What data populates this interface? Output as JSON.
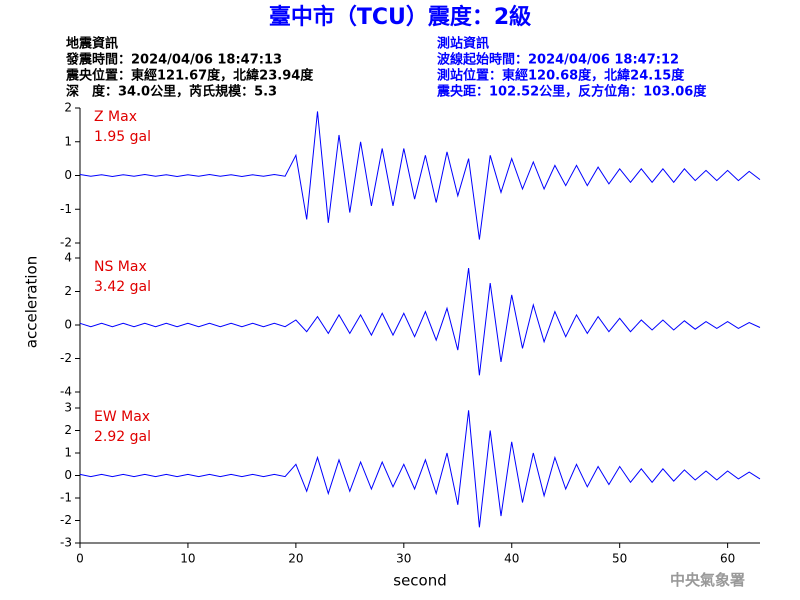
{
  "header": {
    "title": "臺中市（TCU）震度：2級",
    "left": [
      "地震資訊",
      "發震時間：2024/04/06 18:47:13",
      "震央位置：東經121.67度，北緯23.94度",
      "深　度：34.0公里，芮氏規模：5.3"
    ],
    "right": [
      "測站資訊",
      "波線起始時間：2024/04/06 18:47:12",
      "測站位置：東經120.68度，北緯24.15度",
      "震央距：102.52公里，反方位角：103.06度"
    ]
  },
  "x_label": "second",
  "y_label": "acceleration",
  "footer": "中央氣象署",
  "chart_data": [
    {
      "type": "line",
      "annotations": [
        "Z Max",
        "1.95 gal"
      ],
      "color": "#0000ff",
      "xlim": [
        0,
        63
      ],
      "xticks": [
        0,
        10,
        20,
        30,
        40,
        50,
        60
      ],
      "ylim": [
        -2,
        2
      ],
      "yticks": [
        -2,
        -1,
        0,
        1,
        2
      ],
      "x": [
        0,
        1,
        2,
        3,
        4,
        5,
        6,
        7,
        8,
        9,
        10,
        11,
        12,
        13,
        14,
        15,
        16,
        17,
        18,
        19,
        20,
        21,
        22,
        23,
        24,
        25,
        26,
        27,
        28,
        29,
        30,
        31,
        32,
        33,
        34,
        35,
        36,
        37,
        38,
        39,
        40,
        41,
        42,
        43,
        44,
        45,
        46,
        47,
        48,
        49,
        50,
        51,
        52,
        53,
        54,
        55,
        56,
        57,
        58,
        59,
        60,
        61,
        62,
        63
      ],
      "values": [
        0.03,
        -0.02,
        0.02,
        -0.03,
        0.02,
        -0.02,
        0.03,
        -0.02,
        0.02,
        -0.03,
        0.02,
        -0.02,
        0.03,
        -0.02,
        0.02,
        -0.03,
        0.02,
        -0.02,
        0.03,
        -0.02,
        0.6,
        -1.3,
        1.9,
        -1.4,
        1.2,
        -1.1,
        1.0,
        -0.9,
        0.8,
        -0.9,
        0.8,
        -0.7,
        0.6,
        -0.8,
        0.7,
        -0.6,
        0.5,
        -1.9,
        0.6,
        -0.5,
        0.5,
        -0.4,
        0.4,
        -0.4,
        0.3,
        -0.3,
        0.3,
        -0.3,
        0.25,
        -0.25,
        0.2,
        -0.2,
        0.2,
        -0.2,
        0.2,
        -0.2,
        0.2,
        -0.15,
        0.15,
        -0.15,
        0.15,
        -0.15,
        0.12,
        -0.12
      ]
    },
    {
      "type": "line",
      "annotations": [
        "NS Max",
        "3.42 gal"
      ],
      "color": "#0000ff",
      "xlim": [
        0,
        63
      ],
      "xticks": [
        0,
        10,
        20,
        30,
        40,
        50,
        60
      ],
      "ylim": [
        -4,
        4
      ],
      "yticks": [
        -4,
        -2,
        0,
        2,
        4
      ],
      "x": [
        0,
        1,
        2,
        3,
        4,
        5,
        6,
        7,
        8,
        9,
        10,
        11,
        12,
        13,
        14,
        15,
        16,
        17,
        18,
        19,
        20,
        21,
        22,
        23,
        24,
        25,
        26,
        27,
        28,
        29,
        30,
        31,
        32,
        33,
        34,
        35,
        36,
        37,
        38,
        39,
        40,
        41,
        42,
        43,
        44,
        45,
        46,
        47,
        48,
        49,
        50,
        51,
        52,
        53,
        54,
        55,
        56,
        57,
        58,
        59,
        60,
        61,
        62,
        63
      ],
      "values": [
        0.1,
        -0.1,
        0.1,
        -0.1,
        0.1,
        -0.1,
        0.1,
        -0.1,
        0.1,
        -0.1,
        0.1,
        -0.1,
        0.1,
        -0.1,
        0.1,
        -0.1,
        0.1,
        -0.1,
        0.1,
        -0.1,
        0.3,
        -0.4,
        0.5,
        -0.5,
        0.6,
        -0.5,
        0.6,
        -0.6,
        0.7,
        -0.6,
        0.7,
        -0.7,
        0.8,
        -0.9,
        1.0,
        -1.5,
        3.4,
        -3.0,
        2.5,
        -2.2,
        1.8,
        -1.4,
        1.2,
        -1.0,
        0.8,
        -0.7,
        0.6,
        -0.5,
        0.5,
        -0.4,
        0.4,
        -0.4,
        0.3,
        -0.3,
        0.3,
        -0.3,
        0.25,
        -0.25,
        0.2,
        -0.2,
        0.2,
        -0.2,
        0.15,
        -0.15
      ]
    },
    {
      "type": "line",
      "annotations": [
        "EW Max",
        "2.92 gal"
      ],
      "color": "#0000ff",
      "xlim": [
        0,
        63
      ],
      "xticks": [
        0,
        10,
        20,
        30,
        40,
        50,
        60
      ],
      "ylim": [
        -3,
        3
      ],
      "yticks": [
        -3,
        -2,
        -1,
        0,
        1,
        2,
        3
      ],
      "x": [
        0,
        1,
        2,
        3,
        4,
        5,
        6,
        7,
        8,
        9,
        10,
        11,
        12,
        13,
        14,
        15,
        16,
        17,
        18,
        19,
        20,
        21,
        22,
        23,
        24,
        25,
        26,
        27,
        28,
        29,
        30,
        31,
        32,
        33,
        34,
        35,
        36,
        37,
        38,
        39,
        40,
        41,
        42,
        43,
        44,
        45,
        46,
        47,
        48,
        49,
        50,
        51,
        52,
        53,
        54,
        55,
        56,
        57,
        58,
        59,
        60,
        61,
        62,
        63
      ],
      "values": [
        0.05,
        -0.05,
        0.05,
        -0.05,
        0.05,
        -0.05,
        0.05,
        -0.05,
        0.05,
        -0.05,
        0.05,
        -0.05,
        0.05,
        -0.05,
        0.05,
        -0.05,
        0.05,
        -0.05,
        0.05,
        -0.05,
        0.5,
        -0.7,
        0.8,
        -0.8,
        0.7,
        -0.7,
        0.6,
        -0.6,
        0.6,
        -0.5,
        0.5,
        -0.6,
        0.7,
        -0.8,
        1.0,
        -1.3,
        2.9,
        -2.3,
        2.0,
        -1.8,
        1.5,
        -1.2,
        1.0,
        -0.9,
        0.8,
        -0.6,
        0.5,
        -0.5,
        0.4,
        -0.4,
        0.4,
        -0.3,
        0.3,
        -0.3,
        0.3,
        -0.25,
        0.25,
        -0.2,
        0.2,
        -0.2,
        0.2,
        -0.15,
        0.15,
        -0.15
      ]
    }
  ]
}
